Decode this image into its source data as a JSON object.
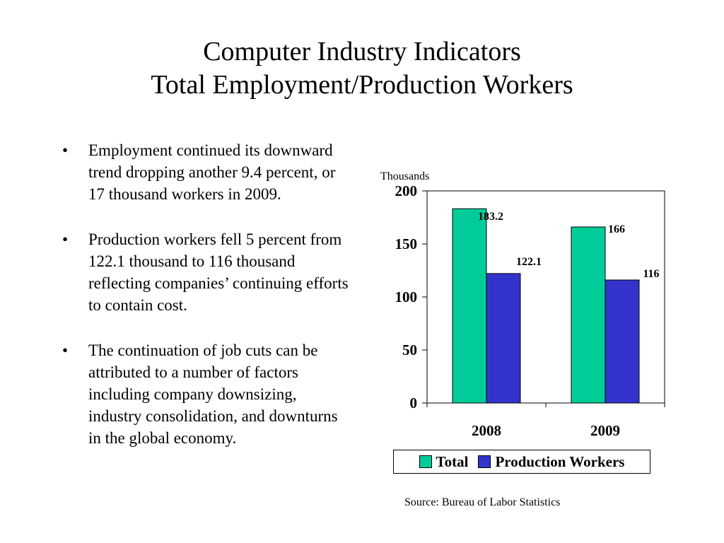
{
  "slide": {
    "title_lines": [
      "Computer Industry Indicators",
      "Total Employment/Production Workers"
    ],
    "bullet_symbol": "•",
    "bullets": [
      "Employment continued its downward trend dropping another 9.4 percent, or 17 thousand workers in 2009.",
      "Production workers fell 5 percent from 122.1 thousand to 116 thousand reflecting companies’ continuing efforts to contain cost.",
      "The continuation of job cuts can be attributed to a number of factors including company downsizing, industry consolidation, and downturns in the global economy."
    ],
    "source": "Source:  Bureau of Labor Statistics"
  },
  "chart_data": {
    "type": "bar",
    "units_label": "Thousands",
    "categories": [
      "2008",
      "2009"
    ],
    "series": [
      {
        "name": "Total",
        "values": [
          183.2,
          166
        ],
        "labels": [
          "183.2",
          "166"
        ],
        "color": "#00CC99"
      },
      {
        "name": "Production Workers",
        "values": [
          122.1,
          116
        ],
        "labels": [
          "122.1",
          "116"
        ],
        "color": "#3333CC"
      }
    ],
    "ylim": [
      0,
      200
    ],
    "yticks": [
      0,
      50,
      100,
      150,
      200
    ],
    "grid": false,
    "legend_position": "bottom"
  }
}
